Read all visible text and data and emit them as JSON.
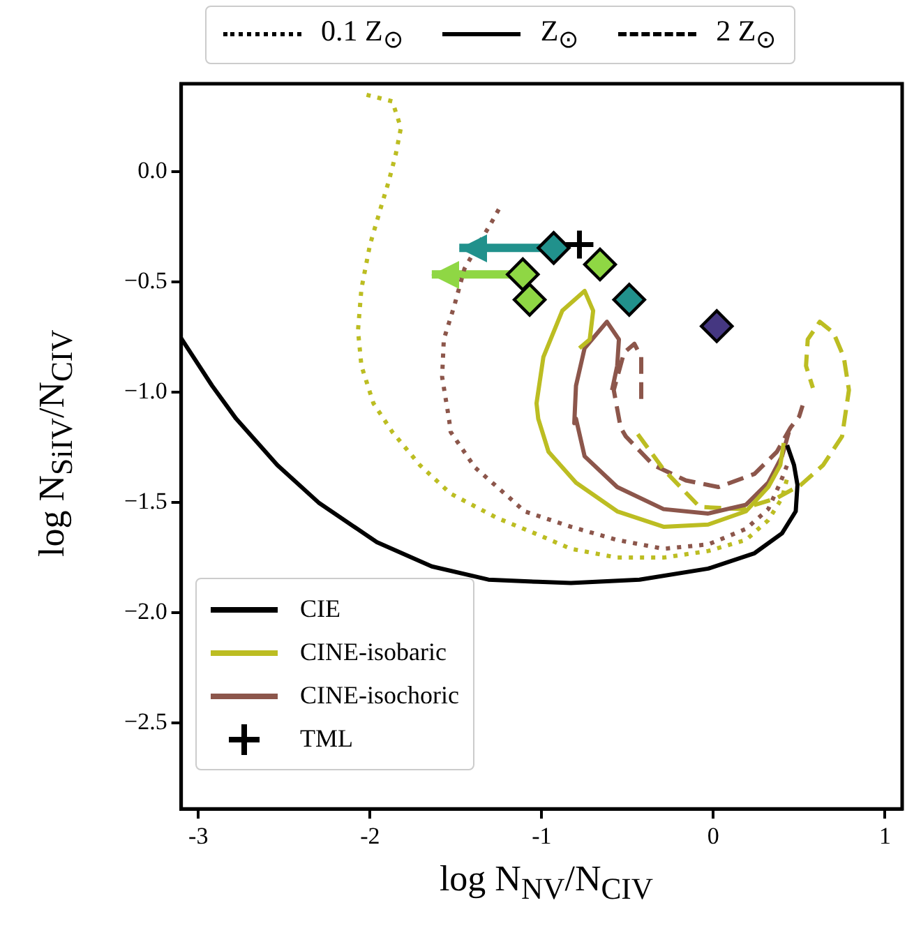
{
  "chart_data": {
    "type": "line",
    "xlabel": "log N$_{NV}$/N$_{CIV}$",
    "ylabel": "log N$_{SiIV}$/N$_{CIV}$",
    "annotations": [
      "0.1 Z$_{⊙}$",
      "Z$_{⊙}$",
      "2 Z$_{⊙}$"
    ],
    "xlim": [
      -3.1,
      1.1
    ],
    "xticks": [
      -3,
      -2,
      -1,
      0,
      1
    ],
    "ylim": [
      -2.89,
      0.4
    ],
    "yticks": [
      {
        "value": -2.5,
        "label": "−2.5"
      },
      {
        "value": -2,
        "label": "−2.0"
      },
      {
        "value": -1.5,
        "label": "−1.5"
      },
      {
        "value": -1,
        "label": "−1.0"
      },
      {
        "value": -0.5,
        "label": "−0.5"
      },
      {
        "value": 0,
        "label": "0.0"
      }
    ],
    "grid": false,
    "legend": "bottom left",
    "series": [
      {
        "name": "CIE",
        "color": "#000000",
        "line_style": "solid",
        "x": [
          -3.1,
          -2.92,
          -2.78,
          -2.54,
          -2.3,
          -1.96,
          -1.64,
          -1.31,
          -1.02,
          -0.83,
          -0.43,
          -0.03,
          0.24,
          0.4,
          0.48,
          0.49,
          0.47,
          0.43
        ],
        "values": [
          -0.755,
          -0.97,
          -1.12,
          -1.33,
          -1.5,
          -1.68,
          -1.79,
          -1.85,
          -1.86,
          -1.865,
          -1.85,
          -1.8,
          -1.73,
          -1.64,
          -1.54,
          -1.42,
          -1.33,
          -1.24
        ]
      },
      {
        "color": "#bcbd22",
        "line_style": "dotted",
        "x": [
          -2.02,
          -1.87,
          -1.82,
          -1.85,
          -1.89,
          -1.94,
          -2.0,
          -2.05,
          -2.07,
          -2.05,
          -1.98,
          -1.87,
          -1.71,
          -1.53,
          -1.26,
          -1.04,
          -0.83,
          -0.56,
          -0.29,
          -0.03,
          0.19,
          0.32,
          0.4,
          0.43
        ],
        "values": [
          0.35,
          0.32,
          0.2,
          0.08,
          -0.04,
          -0.17,
          -0.33,
          -0.53,
          -0.72,
          -0.88,
          -1.05,
          -1.18,
          -1.33,
          -1.46,
          -1.57,
          -1.64,
          -1.71,
          -1.75,
          -1.75,
          -1.72,
          -1.67,
          -1.58,
          -1.48,
          -1.39
        ]
      },
      {
        "color": "#8c564b",
        "line_style": "dotted",
        "x": [
          -1.25,
          -1.3,
          -1.37,
          -1.45,
          -1.51,
          -1.57,
          -1.58,
          -1.54,
          -1.53,
          -1.39,
          -1.2,
          -1.1,
          -0.83,
          -0.56,
          -0.29,
          -0.03,
          0.19,
          0.32,
          0.39,
          0.43
        ],
        "values": [
          -0.17,
          -0.24,
          -0.33,
          -0.44,
          -0.61,
          -0.76,
          -0.93,
          -1.12,
          -1.18,
          -1.34,
          -1.47,
          -1.54,
          -1.61,
          -1.67,
          -1.71,
          -1.69,
          -1.62,
          -1.53,
          -1.41,
          -1.33
        ]
      },
      {
        "name": "CINE-isobaric",
        "color": "#bcbd22",
        "line_style": "solid",
        "x": [
          -0.78,
          -0.72,
          -0.7,
          -0.75,
          -0.88,
          -0.99,
          -1.03,
          -1.02,
          -0.96,
          -0.8,
          -0.56,
          -0.29,
          -0.03,
          0.19,
          0.32,
          0.39,
          0.41
        ],
        "values": [
          -0.8,
          -0.76,
          -0.63,
          -0.54,
          -0.63,
          -0.84,
          -1.05,
          -1.12,
          -1.27,
          -1.41,
          -1.54,
          -1.61,
          -1.6,
          -1.54,
          -1.43,
          -1.33,
          -1.23
        ]
      },
      {
        "name": "CINE-isochoric",
        "color": "#8c564b",
        "line_style": "solid",
        "x": [
          -0.59,
          -0.56,
          -0.55,
          -0.62,
          -0.75,
          -0.8,
          -0.81,
          -0.8,
          -0.75,
          -0.56,
          -0.29,
          -0.03,
          0.19,
          0.32,
          0.4,
          0.44
        ],
        "values": [
          -0.99,
          -0.88,
          -0.76,
          -0.68,
          -0.8,
          -0.97,
          -1.14,
          -1.12,
          -1.29,
          -1.43,
          -1.53,
          -1.55,
          -1.51,
          -1.41,
          -1.29,
          -1.18
        ]
      },
      {
        "color": "#bcbd22",
        "line_style": "dashed",
        "x": [
          -0.44,
          -0.29,
          -0.08,
          0.16,
          0.37,
          0.51,
          0.64,
          0.75,
          0.79,
          0.76,
          0.7,
          0.62,
          0.55,
          0.54,
          0.58
        ],
        "values": [
          -1.19,
          -1.35,
          -1.52,
          -1.53,
          -1.48,
          -1.42,
          -1.33,
          -1.2,
          -0.99,
          -0.84,
          -0.73,
          -0.68,
          -0.76,
          -0.88,
          -0.98
        ]
      },
      {
        "color": "#8c564b",
        "line_style": "dashed",
        "x": [
          -0.42,
          -0.42,
          -0.46,
          -0.52,
          -0.58,
          -0.54,
          -0.51,
          -0.35,
          -0.16,
          0.03,
          0.24,
          0.37,
          0.45,
          0.5,
          0.52
        ],
        "values": [
          -1.03,
          -0.84,
          -0.78,
          -0.82,
          -0.99,
          -1.16,
          -1.2,
          -1.33,
          -1.4,
          -1.43,
          -1.37,
          -1.27,
          -1.16,
          -1.11,
          -1.06
        ]
      },
      {
        "type": "scatter",
        "marker": "diamond",
        "x": [
          -0.93,
          -1.11,
          -1.07,
          -0.66,
          -0.49,
          0.02
        ],
        "values": [
          -0.345,
          -0.465,
          -0.58,
          -0.42,
          -0.58,
          -0.7
        ],
        "colors": [
          "#21918c",
          "#8fd744",
          "#8fd744",
          "#8fd744",
          "#21918c",
          "#453781"
        ],
        "xerrors": [
          [
            -1.48,
            -0.93
          ],
          [
            -1.64,
            -1.11
          ],
          null,
          null,
          null,
          null
        ]
      },
      {
        "name": "TML",
        "type": "scatter",
        "marker": "cross",
        "color": "#000000",
        "x": [
          -0.78
        ],
        "values": [
          -0.33
        ]
      }
    ]
  }
}
